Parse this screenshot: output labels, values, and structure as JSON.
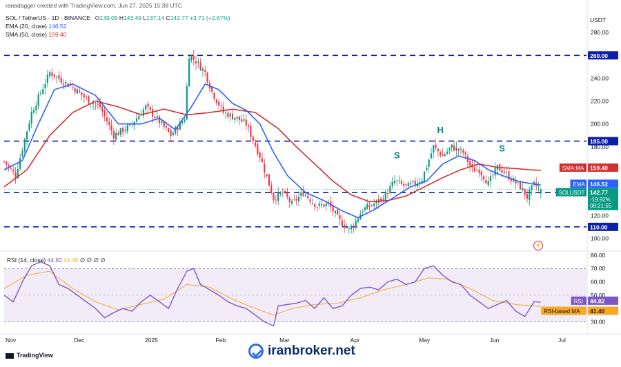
{
  "header": {
    "credit": "ranadagger created with TradingView.com, Jun 27, 2025 15:38 UTC",
    "symbol": "SOL / TetherUS · 1D · BINANCE",
    "ohlc": {
      "o_label": "O",
      "o": "139.05",
      "h_label": "H",
      "h": "143.49",
      "l_label": "L",
      "l": "137.14",
      "c_label": "C",
      "c": "142.77",
      "change": "+3.71 (+2.67%)"
    },
    "ema_label": "EMA (20, close)",
    "ema_value": "146.52",
    "sma_label": "SMA (50, close)",
    "sma_value": "159.40",
    "currency": "USDT"
  },
  "colors": {
    "up": "#089981",
    "down": "#f23645",
    "ema": "#2962ff",
    "sma": "#d32f2f",
    "rsi": "#7e57c2",
    "rsi_ma": "#f9a825",
    "level": "#0b1fa8",
    "rsi_band": "#ede7f6",
    "label_dark": "#131722"
  },
  "chart_data": [
    {
      "type": "candlestick",
      "ylim": [
        90,
        300
      ],
      "y_ticks": [
        {
          "label": "280.00",
          "value": 280
        },
        {
          "label": "240.00",
          "value": 240
        },
        {
          "label": "220.00",
          "value": 220
        },
        {
          "label": "200.00",
          "value": 200
        },
        {
          "label": "180.00",
          "value": 180
        },
        {
          "label": "120.00",
          "value": 120
        },
        {
          "label": "100.00",
          "value": 100
        }
      ],
      "x_ticks": [
        {
          "label": "Nov",
          "day": 0
        },
        {
          "label": "Dec",
          "day": 30
        },
        {
          "label": "2025",
          "day": 61
        },
        {
          "label": "Feb",
          "day": 92
        },
        {
          "label": "Mar",
          "day": 120
        },
        {
          "label": "Apr",
          "day": 151
        },
        {
          "label": "May",
          "day": 181
        },
        {
          "label": "Jun",
          "day": 212
        },
        {
          "label": "Jul",
          "day": 242
        }
      ],
      "horizontal_levels": [
        {
          "value": 260,
          "label": "260.00"
        },
        {
          "value": 185,
          "label": "185.00"
        },
        {
          "value": 140,
          "label": "140.00"
        },
        {
          "value": 110,
          "label": "110.00"
        }
      ],
      "price_tags": [
        {
          "name": "sma",
          "value": 159.4,
          "text": "SMA:MA",
          "price": "159.40"
        },
        {
          "name": "ema",
          "value": 146.52,
          "text": "EMA",
          "price": "146.52"
        },
        {
          "name": "last",
          "value": 142.77,
          "text": "SOLUSDT",
          "price": "142.77",
          "sub1": "-19.92%",
          "sub2": "08:21:55"
        }
      ],
      "annotations": [
        {
          "text": "S",
          "day": 172,
          "value": 170
        },
        {
          "text": "H",
          "day": 191,
          "value": 192
        },
        {
          "text": "S",
          "day": 218,
          "value": 176
        }
      ],
      "close_anchors": [
        [
          0,
          167
        ],
        [
          5,
          155
        ],
        [
          12,
          210
        ],
        [
          20,
          245
        ],
        [
          26,
          237
        ],
        [
          30,
          232
        ],
        [
          36,
          222
        ],
        [
          42,
          215
        ],
        [
          48,
          190
        ],
        [
          55,
          198
        ],
        [
          62,
          215
        ],
        [
          68,
          202
        ],
        [
          73,
          190
        ],
        [
          79,
          205
        ],
        [
          81,
          260
        ],
        [
          84,
          255
        ],
        [
          88,
          245
        ],
        [
          91,
          228
        ],
        [
          96,
          210
        ],
        [
          102,
          205
        ],
        [
          106,
          200
        ],
        [
          112,
          172
        ],
        [
          118,
          135
        ],
        [
          122,
          140
        ],
        [
          126,
          130
        ],
        [
          131,
          140
        ],
        [
          137,
          128
        ],
        [
          142,
          130
        ],
        [
          147,
          115
        ],
        [
          151,
          108
        ],
        [
          153,
          112
        ],
        [
          157,
          125
        ],
        [
          162,
          130
        ],
        [
          166,
          135
        ],
        [
          171,
          150
        ],
        [
          176,
          145
        ],
        [
          180,
          148
        ],
        [
          183,
          152
        ],
        [
          188,
          180
        ],
        [
          192,
          172
        ],
        [
          196,
          180
        ],
        [
          201,
          175
        ],
        [
          205,
          160
        ],
        [
          208,
          160
        ],
        [
          212,
          148
        ],
        [
          216,
          162
        ],
        [
          219,
          158
        ],
        [
          222,
          152
        ],
        [
          226,
          145
        ],
        [
          229,
          136
        ],
        [
          232,
          147
        ],
        [
          235,
          142.77
        ]
      ],
      "ema_anchors": [
        [
          0,
          160
        ],
        [
          8,
          168
        ],
        [
          15,
          200
        ],
        [
          22,
          230
        ],
        [
          30,
          235
        ],
        [
          40,
          225
        ],
        [
          50,
          200
        ],
        [
          60,
          200
        ],
        [
          68,
          205
        ],
        [
          75,
          195
        ],
        [
          82,
          215
        ],
        [
          88,
          235
        ],
        [
          94,
          230
        ],
        [
          100,
          218
        ],
        [
          106,
          212
        ],
        [
          112,
          200
        ],
        [
          118,
          175
        ],
        [
          124,
          155
        ],
        [
          132,
          140
        ],
        [
          140,
          133
        ],
        [
          148,
          124
        ],
        [
          155,
          118
        ],
        [
          162,
          125
        ],
        [
          170,
          135
        ],
        [
          178,
          145
        ],
        [
          185,
          150
        ],
        [
          192,
          165
        ],
        [
          199,
          172
        ],
        [
          206,
          168
        ],
        [
          212,
          160
        ],
        [
          218,
          155
        ],
        [
          225,
          150
        ],
        [
          230,
          148
        ],
        [
          235,
          146.52
        ]
      ],
      "sma_anchors": [
        [
          0,
          145
        ],
        [
          10,
          160
        ],
        [
          20,
          190
        ],
        [
          30,
          210
        ],
        [
          40,
          220
        ],
        [
          50,
          215
        ],
        [
          60,
          208
        ],
        [
          70,
          213
        ],
        [
          80,
          208
        ],
        [
          90,
          210
        ],
        [
          100,
          213
        ],
        [
          110,
          210
        ],
        [
          120,
          196
        ],
        [
          128,
          180
        ],
        [
          136,
          165
        ],
        [
          144,
          150
        ],
        [
          152,
          138
        ],
        [
          160,
          132
        ],
        [
          168,
          133
        ],
        [
          176,
          137
        ],
        [
          184,
          145
        ],
        [
          192,
          153
        ],
        [
          200,
          160
        ],
        [
          208,
          165
        ],
        [
          216,
          162
        ],
        [
          224,
          161
        ],
        [
          230,
          160
        ],
        [
          235,
          159.4
        ]
      ]
    },
    {
      "type": "line",
      "ylim": [
        22,
        82
      ],
      "y_ticks": [
        {
          "label": "80.00",
          "value": 80
        },
        {
          "label": "70.00",
          "value": 70
        },
        {
          "label": "60.00",
          "value": 60
        },
        {
          "label": "50.00",
          "value": 50
        },
        {
          "label": "30.00",
          "value": 30
        }
      ],
      "band": [
        30,
        70
      ],
      "header": {
        "label": "RSI (14, close)",
        "rsi": "44.82",
        "ma": "41.40",
        "extra": "∅ ∅ ∅ ∅"
      },
      "tags": [
        {
          "text": "RSI",
          "value": 44.82,
          "price": "44.82"
        },
        {
          "text": "RSI-based MA",
          "value": 41.4,
          "price": "41.40"
        }
      ],
      "rsi_anchors": [
        [
          0,
          50
        ],
        [
          4,
          45
        ],
        [
          8,
          60
        ],
        [
          12,
          72
        ],
        [
          16,
          75
        ],
        [
          20,
          72
        ],
        [
          24,
          58
        ],
        [
          28,
          55
        ],
        [
          32,
          50
        ],
        [
          36,
          45
        ],
        [
          40,
          40
        ],
        [
          44,
          33
        ],
        [
          48,
          37
        ],
        [
          52,
          40
        ],
        [
          56,
          38
        ],
        [
          60,
          45
        ],
        [
          64,
          50
        ],
        [
          68,
          45
        ],
        [
          72,
          40
        ],
        [
          76,
          55
        ],
        [
          80,
          68
        ],
        [
          83,
          70
        ],
        [
          86,
          58
        ],
        [
          90,
          54
        ],
        [
          94,
          50
        ],
        [
          98,
          45
        ],
        [
          102,
          42
        ],
        [
          106,
          40
        ],
        [
          110,
          35
        ],
        [
          114,
          30
        ],
        [
          118,
          27
        ],
        [
          120,
          42
        ],
        [
          124,
          43
        ],
        [
          128,
          44
        ],
        [
          132,
          46
        ],
        [
          136,
          40
        ],
        [
          140,
          48
        ],
        [
          144,
          40
        ],
        [
          148,
          42
        ],
        [
          152,
          50
        ],
        [
          156,
          55
        ],
        [
          160,
          56
        ],
        [
          164,
          54
        ],
        [
          168,
          60
        ],
        [
          172,
          62
        ],
        [
          176,
          58
        ],
        [
          180,
          60
        ],
        [
          184,
          70
        ],
        [
          188,
          72
        ],
        [
          192,
          65
        ],
        [
          196,
          60
        ],
        [
          200,
          58
        ],
        [
          204,
          50
        ],
        [
          208,
          45
        ],
        [
          212,
          40
        ],
        [
          216,
          43
        ],
        [
          220,
          46
        ],
        [
          224,
          38
        ],
        [
          228,
          34
        ],
        [
          232,
          45
        ],
        [
          235,
          44.82
        ]
      ],
      "ma_anchors": [
        [
          0,
          55
        ],
        [
          10,
          65
        ],
        [
          20,
          68
        ],
        [
          30,
          55
        ],
        [
          40,
          45
        ],
        [
          50,
          39
        ],
        [
          60,
          43
        ],
        [
          70,
          47
        ],
        [
          80,
          58
        ],
        [
          90,
          56
        ],
        [
          100,
          47
        ],
        [
          110,
          40
        ],
        [
          118,
          35
        ],
        [
          126,
          40
        ],
        [
          136,
          43
        ],
        [
          146,
          44
        ],
        [
          156,
          48
        ],
        [
          166,
          54
        ],
        [
          176,
          58
        ],
        [
          186,
          63
        ],
        [
          194,
          62
        ],
        [
          204,
          55
        ],
        [
          214,
          46
        ],
        [
          224,
          43
        ],
        [
          235,
          41.4
        ]
      ]
    }
  ],
  "footer": {
    "brand": "TradingView"
  },
  "watermark": {
    "text": "iranbroker.net"
  }
}
